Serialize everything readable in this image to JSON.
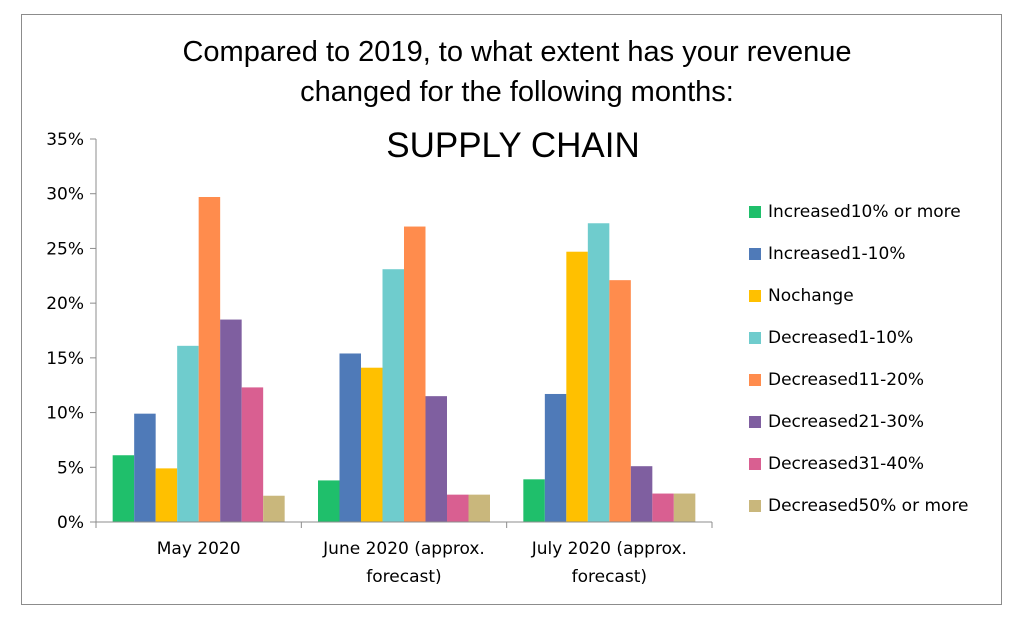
{
  "chart_data": {
    "type": "bar",
    "title_lines": [
      "Compared to 2019, to what extent has your revenue",
      "changed for the following months:"
    ],
    "subtitle": "SUPPLY CHAIN",
    "categories": [
      [
        "May 2020"
      ],
      [
        "June 2020 (approx.",
        "forecast)"
      ],
      [
        "July 2020 (approx.",
        "forecast)"
      ]
    ],
    "y_ticks": [
      "0%",
      "5%",
      "10%",
      "15%",
      "20%",
      "25%",
      "30%",
      "35%"
    ],
    "ylim": [
      0,
      35
    ],
    "y_unit": "%",
    "legend_position": "right",
    "grid": false,
    "series": [
      {
        "name": "Increased10% or more",
        "color": "#1fbf6b",
        "values": [
          6.1,
          3.8,
          3.9
        ]
      },
      {
        "name": "Increased1-10%",
        "color": "#4f7ab8",
        "values": [
          9.9,
          15.4,
          11.7
        ]
      },
      {
        "name": "Nochange",
        "color": "#ffc000",
        "values": [
          4.9,
          14.1,
          24.7
        ]
      },
      {
        "name": "Decreased1-10%",
        "color": "#6fcccd",
        "values": [
          16.1,
          23.1,
          27.3
        ]
      },
      {
        "name": "Decreased11-20%",
        "color": "#ff8c4d",
        "values": [
          29.7,
          27.0,
          22.1
        ]
      },
      {
        "name": "Decreased21-30%",
        "color": "#7f5fa0",
        "values": [
          18.5,
          11.5,
          5.1
        ]
      },
      {
        "name": "Decreased31-40%",
        "color": "#d95f91",
        "values": [
          12.3,
          2.5,
          2.6
        ]
      },
      {
        "name": "Decreased50% or more",
        "color": "#c9b77c",
        "values": [
          2.4,
          2.5,
          2.6
        ]
      }
    ]
  }
}
